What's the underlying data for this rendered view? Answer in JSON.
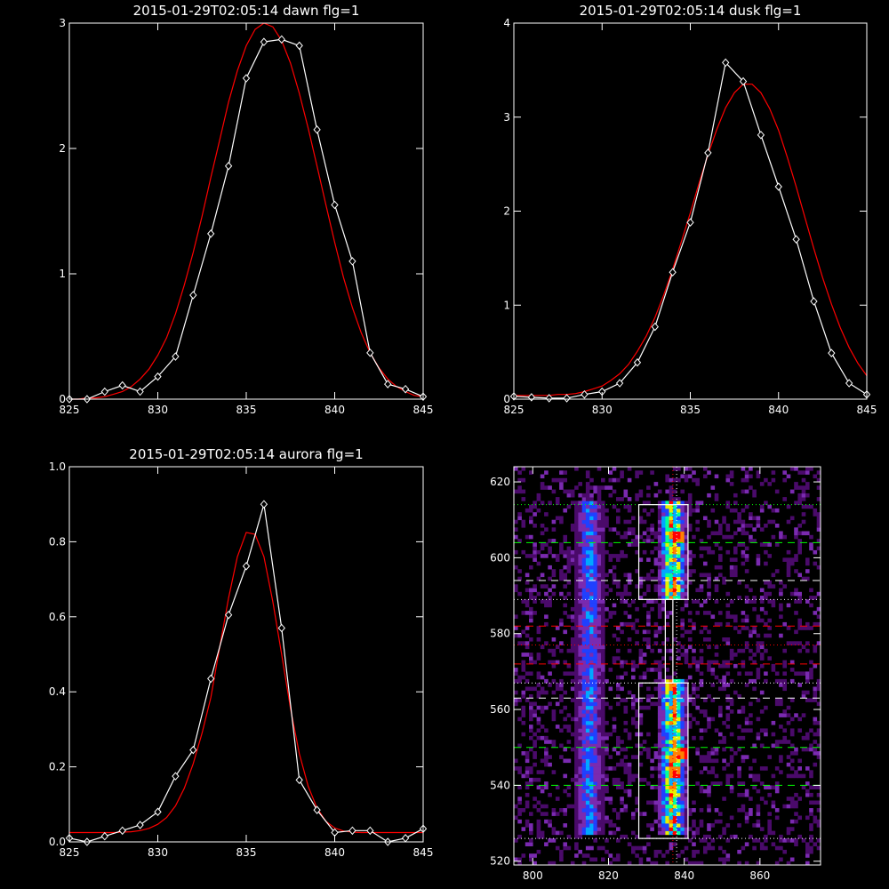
{
  "chart_data": [
    {
      "type": "line",
      "title": "2015-01-29T02:05:14 dawn flg=1",
      "xlim": [
        825,
        845
      ],
      "ylim": [
        0,
        3
      ],
      "x_ticks": [
        825,
        830,
        835,
        840,
        845
      ],
      "y_ticks": [
        0,
        1,
        2,
        3
      ],
      "grid": false,
      "series": [
        {
          "color": "#ffffff",
          "marker": "diamond",
          "x": [
            825,
            826,
            827,
            828,
            829,
            830,
            831,
            832,
            833,
            834,
            835,
            836,
            837,
            838,
            839,
            840,
            841,
            842,
            843,
            844,
            845
          ],
          "y": [
            0.0,
            0.0,
            0.06,
            0.11,
            0.06,
            0.18,
            0.34,
            0.83,
            1.32,
            1.86,
            2.56,
            2.85,
            2.87,
            2.82,
            2.15,
            1.55,
            1.1,
            0.37,
            0.12,
            0.08,
            0.02
          ]
        },
        {
          "color": "#ff0000",
          "kind": "gaussian-fit",
          "x": [
            825,
            825.5,
            826,
            826.5,
            827,
            827.5,
            828,
            828.5,
            829,
            829.5,
            830,
            830.5,
            831,
            831.5,
            832,
            832.5,
            833,
            833.5,
            834,
            834.5,
            835,
            835.5,
            836,
            836.5,
            837,
            837.5,
            838,
            838.5,
            839,
            839.5,
            840,
            840.5,
            841,
            841.5,
            842,
            842.5,
            843,
            843.5,
            844,
            844.5,
            845
          ],
          "y": [
            0.0,
            0.0,
            0.01,
            0.01,
            0.02,
            0.04,
            0.06,
            0.1,
            0.16,
            0.24,
            0.35,
            0.49,
            0.68,
            0.91,
            1.17,
            1.46,
            1.77,
            2.07,
            2.37,
            2.62,
            2.82,
            2.95,
            3.0,
            2.97,
            2.86,
            2.68,
            2.44,
            2.16,
            1.86,
            1.55,
            1.25,
            0.97,
            0.73,
            0.53,
            0.37,
            0.25,
            0.16,
            0.1,
            0.06,
            0.03,
            0.02
          ]
        }
      ]
    },
    {
      "type": "line",
      "title": "2015-01-29T02:05:14 dusk flg=1",
      "xlim": [
        825,
        845
      ],
      "ylim": [
        0,
        4
      ],
      "x_ticks": [
        825,
        830,
        835,
        840,
        845
      ],
      "y_ticks": [
        0,
        1,
        2,
        3,
        4
      ],
      "grid": false,
      "series": [
        {
          "color": "#ffffff",
          "marker": "diamond",
          "x": [
            825,
            826,
            827,
            828,
            829,
            830,
            831,
            832,
            833,
            834,
            835,
            836,
            837,
            838,
            839,
            840,
            841,
            842,
            843,
            844,
            845
          ],
          "y": [
            0.03,
            0.02,
            0.01,
            0.01,
            0.05,
            0.08,
            0.17,
            0.39,
            0.77,
            1.35,
            1.88,
            2.62,
            3.58,
            3.38,
            2.81,
            2.26,
            1.7,
            1.04,
            0.49,
            0.17,
            0.05
          ]
        },
        {
          "color": "#ff0000",
          "kind": "gaussian-fit",
          "x": [
            825,
            825.5,
            826,
            826.5,
            827,
            827.5,
            828,
            828.5,
            829,
            829.5,
            830,
            830.5,
            831,
            831.5,
            832,
            832.5,
            833,
            833.5,
            834,
            834.5,
            835,
            835.5,
            836,
            836.5,
            837,
            837.5,
            838,
            838.5,
            839,
            839.5,
            840,
            840.5,
            841,
            841.5,
            842,
            842.5,
            843,
            843.5,
            844,
            844.5,
            845
          ],
          "y": [
            0.04,
            0.04,
            0.04,
            0.04,
            0.04,
            0.05,
            0.05,
            0.06,
            0.08,
            0.11,
            0.14,
            0.2,
            0.27,
            0.37,
            0.51,
            0.67,
            0.87,
            1.11,
            1.38,
            1.68,
            1.98,
            2.3,
            2.6,
            2.87,
            3.1,
            3.26,
            3.35,
            3.35,
            3.26,
            3.09,
            2.86,
            2.57,
            2.26,
            1.93,
            1.6,
            1.29,
            1.01,
            0.76,
            0.55,
            0.38,
            0.25
          ]
        }
      ]
    },
    {
      "type": "line",
      "title": "2015-01-29T02:05:14 aurora flg=1",
      "xlim": [
        825,
        845
      ],
      "ylim": [
        0,
        1
      ],
      "x_ticks": [
        825,
        830,
        835,
        840,
        845
      ],
      "y_ticks": [
        0.0,
        0.2,
        0.4,
        0.6,
        0.8,
        1.0
      ],
      "grid": false,
      "series": [
        {
          "color": "#ffffff",
          "marker": "diamond",
          "x": [
            825,
            826,
            827,
            828,
            829,
            830,
            831,
            832,
            833,
            834,
            835,
            836,
            837,
            838,
            839,
            840,
            841,
            842,
            843,
            844,
            845
          ],
          "y": [
            0.01,
            0.0,
            0.015,
            0.03,
            0.045,
            0.08,
            0.175,
            0.245,
            0.435,
            0.605,
            0.735,
            0.9,
            0.57,
            0.165,
            0.085,
            0.025,
            0.03,
            0.03,
            0.0,
            0.01,
            0.035
          ]
        },
        {
          "color": "#ff0000",
          "kind": "gaussian-fit",
          "x": [
            825,
            825.5,
            826,
            826.5,
            827,
            827.5,
            828,
            828.5,
            829,
            829.5,
            830,
            830.5,
            831,
            831.5,
            832,
            832.5,
            833,
            833.5,
            834,
            834.5,
            835,
            835.5,
            836,
            836.5,
            837,
            837.5,
            838,
            838.5,
            839,
            839.5,
            840,
            840.5,
            841,
            841.5,
            842,
            842.5,
            843,
            843.5,
            844,
            844.5,
            845
          ],
          "y": [
            0.025,
            0.025,
            0.025,
            0.025,
            0.025,
            0.025,
            0.026,
            0.027,
            0.03,
            0.036,
            0.047,
            0.065,
            0.096,
            0.143,
            0.208,
            0.29,
            0.385,
            0.52,
            0.65,
            0.76,
            0.825,
            0.82,
            0.76,
            0.64,
            0.5,
            0.355,
            0.235,
            0.148,
            0.09,
            0.055,
            0.037,
            0.029,
            0.026,
            0.025,
            0.025,
            0.025,
            0.025,
            0.025,
            0.025,
            0.025,
            0.025
          ]
        }
      ]
    },
    {
      "type": "heatmap",
      "xlim": [
        795,
        876
      ],
      "ylim": [
        519,
        624
      ],
      "x_ticks": [
        800,
        820,
        840,
        860
      ],
      "y_ticks": [
        520,
        540,
        560,
        580,
        600,
        620
      ],
      "colormap": [
        "#000000",
        "#4a0a6a",
        "#7a2ab0",
        "#2040ff",
        "#00a8ff",
        "#00ffa0",
        "#e8f000",
        "#ff8000",
        "#ff0000"
      ],
      "bright_columns": [
        {
          "x_center": 815,
          "half_width": 4,
          "y_ranges": [
            [
              527,
              598
            ],
            [
              598,
              614
            ]
          ],
          "peak": 0.55
        },
        {
          "x_center": 837,
          "half_width": 4,
          "y_ranges": [
            [
              527,
              567
            ],
            [
              589,
              614
            ]
          ],
          "peak": 1.0
        }
      ],
      "hot_spots": [
        {
          "x": 838,
          "y": 605
        },
        {
          "x": 837,
          "y": 543
        },
        {
          "x": 839,
          "y": 548
        }
      ],
      "boxes": [
        {
          "color": "#ffffff",
          "x": [
            828,
            841
          ],
          "y": [
            589,
            614
          ]
        },
        {
          "color": "#ffffff",
          "x": [
            828,
            841
          ],
          "y": [
            526,
            567
          ]
        },
        {
          "color": "#ffffff",
          "x": [
            835,
            837
          ],
          "y": [
            567,
            589
          ]
        }
      ],
      "horizontal_lines": [
        {
          "y": 614,
          "color": "#00ff00",
          "style": "dotted"
        },
        {
          "y": 604,
          "color": "#00ff00",
          "style": "dashed"
        },
        {
          "y": 594,
          "color": "#ffffff",
          "style": "dashed"
        },
        {
          "y": 589,
          "color": "#ffffff",
          "style": "dotted"
        },
        {
          "y": 582,
          "color": "#ff0000",
          "style": "dashed"
        },
        {
          "y": 577,
          "color": "#ff0000",
          "style": "dotted"
        },
        {
          "y": 572,
          "color": "#ff0000",
          "style": "dashed"
        },
        {
          "y": 567,
          "color": "#ffffff",
          "style": "dotted"
        },
        {
          "y": 563,
          "color": "#ffffff",
          "style": "dashed"
        },
        {
          "y": 550,
          "color": "#00ff00",
          "style": "dashed"
        },
        {
          "y": 540,
          "color": "#00ff00",
          "style": "dashed"
        },
        {
          "y": 526,
          "color": "#ffffff",
          "style": "dotted"
        }
      ],
      "vertical_lines": [
        {
          "x": 837,
          "color": "#ff0000",
          "style": "dotted"
        },
        {
          "x": 838,
          "color": "#ffffff",
          "style": "dotted"
        }
      ]
    }
  ]
}
